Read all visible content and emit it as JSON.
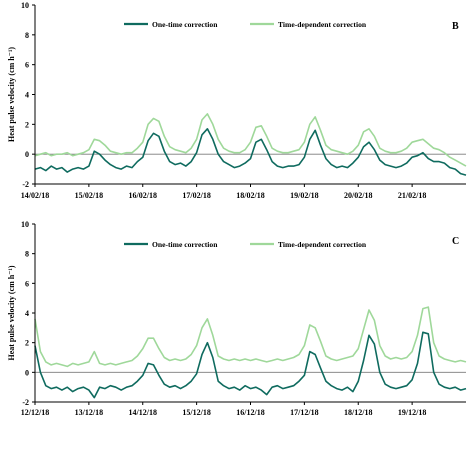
{
  "colors": {
    "one_time": "#0f6b5f",
    "time_dependent": "#9fd89a",
    "axis": "#000000"
  },
  "chart_data": [
    {
      "type": "line",
      "panel_label": "B",
      "ylabel": "Heat pulse velocity (cm h⁻¹)",
      "ylim": [
        -2,
        10
      ],
      "yticks": [
        -2,
        0,
        2,
        4,
        6,
        8,
        10
      ],
      "xlim": [
        0,
        8
      ],
      "xtick_labels": [
        "14/02/18",
        "15/02/18",
        "16/02/18",
        "17/02/18",
        "18/02/18",
        "19/02/18",
        "20/02/18",
        "21/02/18"
      ],
      "legend": "top-center",
      "grid": false,
      "reference_line_y": 0,
      "series": [
        {
          "name": "One-time correction",
          "x": [
            0,
            0.1,
            0.2,
            0.3,
            0.4,
            0.5,
            0.6,
            0.7,
            0.8,
            0.9,
            1,
            1.1,
            1.2,
            1.3,
            1.4,
            1.5,
            1.6,
            1.7,
            1.8,
            1.9,
            2,
            2.1,
            2.2,
            2.3,
            2.4,
            2.5,
            2.6,
            2.7,
            2.8,
            2.9,
            3,
            3.1,
            3.2,
            3.3,
            3.4,
            3.5,
            3.6,
            3.7,
            3.8,
            3.9,
            4,
            4.1,
            4.2,
            4.3,
            4.4,
            4.5,
            4.6,
            4.7,
            4.8,
            4.9,
            5,
            5.1,
            5.2,
            5.3,
            5.4,
            5.5,
            5.6,
            5.7,
            5.8,
            5.9,
            6,
            6.1,
            6.2,
            6.3,
            6.4,
            6.5,
            6.6,
            6.7,
            6.8,
            6.9,
            7,
            7.1,
            7.2,
            7.3,
            7.4,
            7.5,
            7.6,
            7.7,
            7.8,
            7.9,
            8
          ],
          "y": [
            -1.0,
            -0.9,
            -1.1,
            -0.8,
            -1.0,
            -0.9,
            -1.2,
            -1.0,
            -0.9,
            -1.0,
            -0.8,
            0.2,
            0.0,
            -0.4,
            -0.7,
            -0.9,
            -1.0,
            -0.8,
            -0.9,
            -0.5,
            -0.2,
            0.9,
            1.4,
            1.2,
            0.2,
            -0.5,
            -0.7,
            -0.6,
            -0.8,
            -0.5,
            0.1,
            1.3,
            1.7,
            1.0,
            0.0,
            -0.5,
            -0.7,
            -0.9,
            -0.8,
            -0.6,
            -0.3,
            0.8,
            1.0,
            0.3,
            -0.5,
            -0.8,
            -0.9,
            -0.8,
            -0.8,
            -0.7,
            -0.2,
            1.0,
            1.6,
            0.6,
            -0.3,
            -0.7,
            -0.9,
            -0.8,
            -0.9,
            -0.6,
            -0.2,
            0.5,
            0.8,
            0.3,
            -0.4,
            -0.7,
            -0.8,
            -0.9,
            -0.8,
            -0.6,
            -0.2,
            -0.1,
            0.1,
            -0.3,
            -0.5,
            -0.5,
            -0.6,
            -0.9,
            -1.0,
            -1.3,
            -1.4
          ]
        },
        {
          "name": "Time-dependent correction",
          "x": [
            0,
            0.1,
            0.2,
            0.3,
            0.4,
            0.5,
            0.6,
            0.7,
            0.8,
            0.9,
            1,
            1.1,
            1.2,
            1.3,
            1.4,
            1.5,
            1.6,
            1.7,
            1.8,
            1.9,
            2,
            2.1,
            2.2,
            2.3,
            2.4,
            2.5,
            2.6,
            2.7,
            2.8,
            2.9,
            3,
            3.1,
            3.2,
            3.3,
            3.4,
            3.5,
            3.6,
            3.7,
            3.8,
            3.9,
            4,
            4.1,
            4.2,
            4.3,
            4.4,
            4.5,
            4.6,
            4.7,
            4.8,
            4.9,
            5,
            5.1,
            5.2,
            5.3,
            5.4,
            5.5,
            5.6,
            5.7,
            5.8,
            5.9,
            6,
            6.1,
            6.2,
            6.3,
            6.4,
            6.5,
            6.6,
            6.7,
            6.8,
            6.9,
            7,
            7.1,
            7.2,
            7.3,
            7.4,
            7.5,
            7.6,
            7.7,
            7.8,
            7.9,
            8
          ],
          "y": [
            -0.1,
            0.0,
            0.1,
            -0.1,
            0.0,
            0.0,
            0.1,
            -0.1,
            0.0,
            0.1,
            0.3,
            1.0,
            0.9,
            0.6,
            0.2,
            0.1,
            0.0,
            0.1,
            0.1,
            0.4,
            0.8,
            2.0,
            2.4,
            2.2,
            1.2,
            0.5,
            0.3,
            0.2,
            0.1,
            0.4,
            1.0,
            2.3,
            2.7,
            2.0,
            1.0,
            0.4,
            0.2,
            0.1,
            0.1,
            0.3,
            0.8,
            1.8,
            1.9,
            1.2,
            0.4,
            0.2,
            0.1,
            0.1,
            0.2,
            0.3,
            0.8,
            2.0,
            2.5,
            1.6,
            0.6,
            0.3,
            0.2,
            0.1,
            0.0,
            0.2,
            0.6,
            1.5,
            1.7,
            1.2,
            0.4,
            0.2,
            0.1,
            0.1,
            0.2,
            0.4,
            0.8,
            0.9,
            1.0,
            0.7,
            0.4,
            0.3,
            0.1,
            -0.2,
            -0.4,
            -0.6,
            -0.8
          ]
        }
      ]
    },
    {
      "type": "line",
      "panel_label": "C",
      "ylabel": "Heat pulse velocity (cm h⁻¹)",
      "ylim": [
        -2,
        10
      ],
      "yticks": [
        -2,
        0,
        2,
        4,
        6,
        8,
        10
      ],
      "xlim": [
        0,
        8
      ],
      "xtick_labels": [
        "12/12/18",
        "13/12/18",
        "14/12/18",
        "15/12/18",
        "16/12/18",
        "17/12/18",
        "18/12/18",
        "19/12/18"
      ],
      "legend": "top-center",
      "grid": false,
      "reference_line_y": 0,
      "series": [
        {
          "name": "One-time correction",
          "x": [
            0,
            0.1,
            0.2,
            0.3,
            0.4,
            0.5,
            0.6,
            0.7,
            0.8,
            0.9,
            1,
            1.1,
            1.2,
            1.3,
            1.4,
            1.5,
            1.6,
            1.7,
            1.8,
            1.9,
            2,
            2.1,
            2.2,
            2.3,
            2.4,
            2.5,
            2.6,
            2.7,
            2.8,
            2.9,
            3,
            3.1,
            3.2,
            3.3,
            3.4,
            3.5,
            3.6,
            3.7,
            3.8,
            3.9,
            4,
            4.1,
            4.2,
            4.3,
            4.4,
            4.5,
            4.6,
            4.7,
            4.8,
            4.9,
            5,
            5.1,
            5.2,
            5.3,
            5.4,
            5.5,
            5.6,
            5.7,
            5.8,
            5.9,
            6,
            6.1,
            6.2,
            6.3,
            6.4,
            6.5,
            6.6,
            6.7,
            6.8,
            6.9,
            7,
            7.1,
            7.2,
            7.3,
            7.4,
            7.5,
            7.6,
            7.7,
            7.8,
            7.9,
            8
          ],
          "y": [
            1.8,
            0.0,
            -0.9,
            -1.1,
            -1.0,
            -1.2,
            -1.0,
            -1.3,
            -1.1,
            -1.0,
            -1.2,
            -1.7,
            -1.0,
            -1.1,
            -0.9,
            -1.0,
            -1.2,
            -1.0,
            -0.9,
            -0.6,
            -0.2,
            0.6,
            0.5,
            -0.2,
            -0.8,
            -1.0,
            -0.9,
            -1.1,
            -0.9,
            -0.6,
            -0.1,
            1.2,
            2.0,
            1.0,
            -0.6,
            -0.9,
            -1.1,
            -1.0,
            -1.2,
            -0.9,
            -1.1,
            -1.0,
            -1.2,
            -1.5,
            -1.0,
            -0.9,
            -1.1,
            -1.0,
            -0.9,
            -0.6,
            -0.2,
            1.4,
            1.2,
            0.3,
            -0.6,
            -0.9,
            -1.1,
            -1.2,
            -1.0,
            -1.3,
            -0.6,
            0.8,
            2.5,
            1.9,
            0.0,
            -0.8,
            -1.0,
            -1.1,
            -1.0,
            -0.9,
            -0.5,
            0.6,
            2.7,
            2.6,
            0.0,
            -0.8,
            -1.0,
            -1.1,
            -1.0,
            -1.2,
            -1.1
          ]
        },
        {
          "name": "Time-dependent correction",
          "x": [
            0,
            0.1,
            0.2,
            0.3,
            0.4,
            0.5,
            0.6,
            0.7,
            0.8,
            0.9,
            1,
            1.1,
            1.2,
            1.3,
            1.4,
            1.5,
            1.6,
            1.7,
            1.8,
            1.9,
            2,
            2.1,
            2.2,
            2.3,
            2.4,
            2.5,
            2.6,
            2.7,
            2.8,
            2.9,
            3,
            3.1,
            3.2,
            3.3,
            3.4,
            3.5,
            3.6,
            3.7,
            3.8,
            3.9,
            4,
            4.1,
            4.2,
            4.3,
            4.4,
            4.5,
            4.6,
            4.7,
            4.8,
            4.9,
            5,
            5.1,
            5.2,
            5.3,
            5.4,
            5.5,
            5.6,
            5.7,
            5.8,
            5.9,
            6,
            6.1,
            6.2,
            6.3,
            6.4,
            6.5,
            6.6,
            6.7,
            6.8,
            6.9,
            7,
            7.1,
            7.2,
            7.3,
            7.4,
            7.5,
            7.6,
            7.7,
            7.8,
            7.9,
            8
          ],
          "y": [
            3.6,
            1.4,
            0.7,
            0.5,
            0.6,
            0.5,
            0.4,
            0.6,
            0.5,
            0.6,
            0.7,
            1.4,
            0.6,
            0.5,
            0.6,
            0.5,
            0.6,
            0.7,
            0.8,
            1.1,
            1.6,
            2.3,
            2.3,
            1.6,
            1.0,
            0.8,
            0.9,
            0.8,
            0.9,
            1.2,
            1.8,
            3.0,
            3.6,
            2.5,
            1.1,
            0.9,
            0.8,
            0.9,
            0.8,
            0.9,
            0.8,
            0.9,
            0.8,
            0.7,
            0.8,
            0.9,
            0.8,
            0.9,
            1.0,
            1.2,
            1.8,
            3.2,
            3.0,
            2.1,
            1.1,
            0.9,
            0.8,
            0.9,
            1.0,
            1.1,
            1.6,
            2.9,
            4.2,
            3.5,
            1.8,
            1.1,
            0.9,
            1.0,
            0.9,
            1.0,
            1.4,
            2.5,
            4.3,
            4.4,
            2.0,
            1.1,
            0.9,
            0.8,
            0.7,
            0.8,
            0.7
          ]
        }
      ]
    }
  ]
}
